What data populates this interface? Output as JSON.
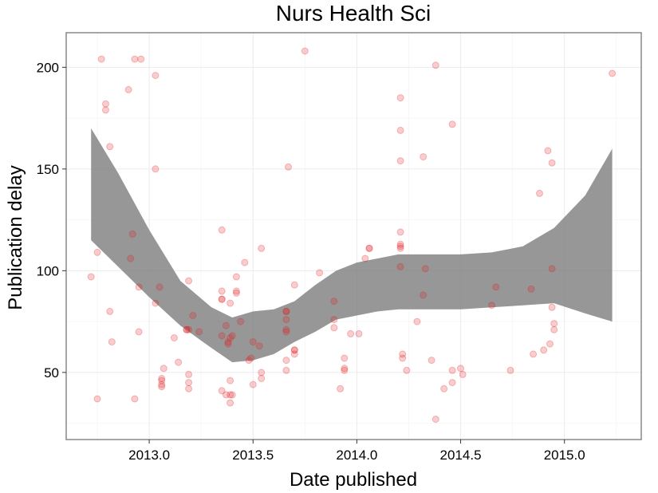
{
  "chart_data": {
    "type": "scatter",
    "title": "Nurs Health Sci",
    "xlabel": "Date published",
    "ylabel": "Publication delay",
    "xlim": [
      2012.6,
      2015.37
    ],
    "ylim": [
      17,
      217
    ],
    "x_ticks": [
      2013.0,
      2013.5,
      2014.0,
      2014.5,
      2015.0
    ],
    "x_tick_labels": [
      "2013.0",
      "2013.5",
      "2014.0",
      "2014.5",
      "2015.0"
    ],
    "y_ticks": [
      50,
      100,
      150,
      200
    ],
    "y_tick_labels": [
      "50",
      "100",
      "150",
      "200"
    ],
    "grid": true,
    "legend": "none",
    "point_color": "#e41a1c",
    "band_color": "#808080",
    "points": [
      [
        2012.72,
        97
      ],
      [
        2012.75,
        37
      ],
      [
        2012.75,
        109
      ],
      [
        2012.77,
        204
      ],
      [
        2012.79,
        182
      ],
      [
        2012.79,
        179
      ],
      [
        2012.81,
        161
      ],
      [
        2012.81,
        80
      ],
      [
        2012.82,
        65
      ],
      [
        2012.9,
        189
      ],
      [
        2012.92,
        118
      ],
      [
        2012.91,
        106
      ],
      [
        2012.93,
        204
      ],
      [
        2012.93,
        37
      ],
      [
        2012.95,
        92
      ],
      [
        2012.95,
        70
      ],
      [
        2012.96,
        204
      ],
      [
        2013.03,
        196
      ],
      [
        2013.03,
        150
      ],
      [
        2013.03,
        84
      ],
      [
        2013.05,
        92
      ],
      [
        2013.06,
        47
      ],
      [
        2013.06,
        46
      ],
      [
        2013.06,
        44
      ],
      [
        2013.06,
        43
      ],
      [
        2013.07,
        52
      ],
      [
        2013.12,
        67
      ],
      [
        2013.14,
        55
      ],
      [
        2013.18,
        71
      ],
      [
        2013.18,
        71
      ],
      [
        2013.19,
        71
      ],
      [
        2013.19,
        95
      ],
      [
        2013.19,
        49
      ],
      [
        2013.19,
        45
      ],
      [
        2013.19,
        42
      ],
      [
        2013.21,
        78
      ],
      [
        2013.24,
        70
      ],
      [
        2013.35,
        120
      ],
      [
        2013.35,
        90
      ],
      [
        2013.35,
        86
      ],
      [
        2013.35,
        86
      ],
      [
        2013.35,
        68
      ],
      [
        2013.35,
        41
      ],
      [
        2013.37,
        73
      ],
      [
        2013.37,
        39
      ],
      [
        2013.38,
        65
      ],
      [
        2013.38,
        64
      ],
      [
        2013.39,
        67
      ],
      [
        2013.39,
        84
      ],
      [
        2013.39,
        46
      ],
      [
        2013.39,
        39
      ],
      [
        2013.4,
        39
      ],
      [
        2013.39,
        35
      ],
      [
        2013.4,
        68
      ],
      [
        2013.42,
        97
      ],
      [
        2013.42,
        90
      ],
      [
        2013.42,
        89
      ],
      [
        2013.44,
        75
      ],
      [
        2013.46,
        104
      ],
      [
        2013.48,
        56
      ],
      [
        2013.49,
        57
      ],
      [
        2013.5,
        44
      ],
      [
        2013.5,
        65
      ],
      [
        2013.53,
        63
      ],
      [
        2013.54,
        111
      ],
      [
        2013.54,
        50
      ],
      [
        2013.54,
        47
      ],
      [
        2013.66,
        80
      ],
      [
        2013.66,
        80
      ],
      [
        2013.66,
        76
      ],
      [
        2013.66,
        71
      ],
      [
        2013.66,
        70
      ],
      [
        2013.66,
        56
      ],
      [
        2013.66,
        51
      ],
      [
        2013.67,
        151
      ],
      [
        2013.7,
        93
      ],
      [
        2013.7,
        61
      ],
      [
        2013.7,
        61
      ],
      [
        2013.7,
        59
      ],
      [
        2013.75,
        208
      ],
      [
        2013.82,
        99
      ],
      [
        2013.89,
        85
      ],
      [
        2013.89,
        76
      ],
      [
        2013.89,
        72
      ],
      [
        2013.92,
        42
      ],
      [
        2013.94,
        57
      ],
      [
        2013.94,
        52
      ],
      [
        2013.94,
        51
      ],
      [
        2013.97,
        69
      ],
      [
        2014.01,
        69
      ],
      [
        2014.04,
        106
      ],
      [
        2014.06,
        111
      ],
      [
        2014.06,
        111
      ],
      [
        2014.21,
        185
      ],
      [
        2014.21,
        169
      ],
      [
        2014.21,
        154
      ],
      [
        2014.21,
        119
      ],
      [
        2014.21,
        113
      ],
      [
        2014.21,
        112
      ],
      [
        2014.21,
        111
      ],
      [
        2014.21,
        102
      ],
      [
        2014.22,
        59
      ],
      [
        2014.22,
        57
      ],
      [
        2014.24,
        51
      ],
      [
        2014.29,
        75
      ],
      [
        2014.32,
        156
      ],
      [
        2014.32,
        88
      ],
      [
        2014.33,
        101
      ],
      [
        2014.36,
        56
      ],
      [
        2014.38,
        201
      ],
      [
        2014.38,
        27
      ],
      [
        2014.42,
        42
      ],
      [
        2014.46,
        172
      ],
      [
        2014.46,
        51
      ],
      [
        2014.46,
        45
      ],
      [
        2014.5,
        52
      ],
      [
        2014.51,
        49
      ],
      [
        2014.65,
        83
      ],
      [
        2014.67,
        92
      ],
      [
        2014.74,
        51
      ],
      [
        2014.84,
        91
      ],
      [
        2014.85,
        59
      ],
      [
        2014.88,
        138
      ],
      [
        2014.9,
        61
      ],
      [
        2014.92,
        159
      ],
      [
        2014.93,
        64
      ],
      [
        2014.94,
        153
      ],
      [
        2014.94,
        101
      ],
      [
        2014.94,
        82
      ],
      [
        2014.95,
        74
      ],
      [
        2014.95,
        71
      ],
      [
        2015.23,
        197
      ]
    ],
    "confidence_band": {
      "x": [
        2012.72,
        2012.85,
        2013.0,
        2013.15,
        2013.3,
        2013.4,
        2013.5,
        2013.6,
        2013.7,
        2013.8,
        2013.9,
        2014.0,
        2014.1,
        2014.2,
        2014.35,
        2014.5,
        2014.65,
        2014.8,
        2014.95,
        2015.1,
        2015.23
      ],
      "lower": [
        115,
        102,
        87,
        73,
        62,
        55,
        56,
        59,
        65,
        70,
        76,
        78,
        80,
        81,
        81,
        81,
        82,
        83,
        84,
        79,
        75
      ],
      "upper": [
        170,
        148,
        120,
        95,
        82,
        77,
        80,
        81,
        85,
        93,
        100,
        104,
        106,
        108,
        108,
        108,
        109,
        112,
        121,
        137,
        160
      ]
    }
  }
}
